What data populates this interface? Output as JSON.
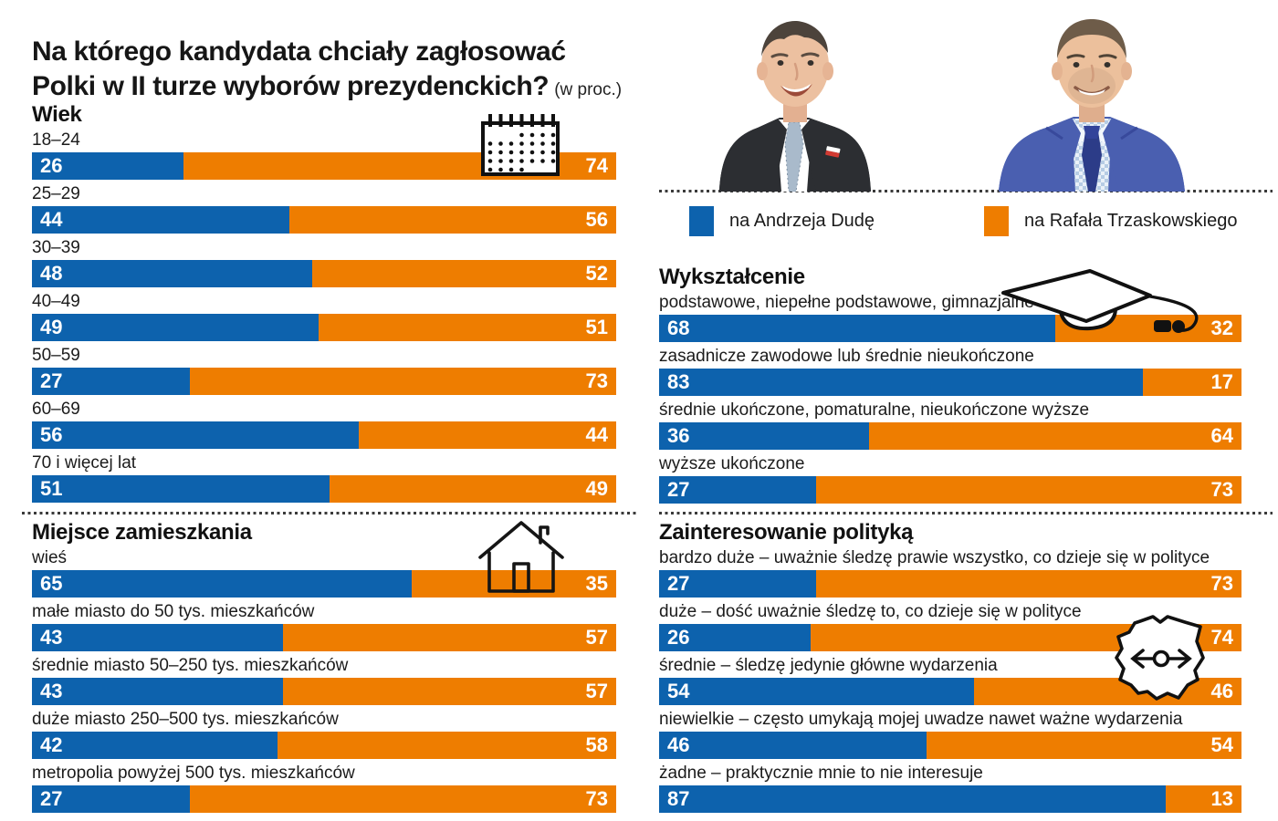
{
  "title": {
    "line1": "Na którego kandydata chciały zagłosować",
    "line2": "Polki w II turze wyborów prezydenckich?",
    "unit_note": "(w proc.)"
  },
  "colors": {
    "duda_blue": "#0d62ad",
    "trzaskowski_orange": "#ee7d00"
  },
  "legend": {
    "duda_label": "na Andrzeja Dudę",
    "trzaskowski_label": "na Rafała Trzaskowskiego"
  },
  "photos": {
    "duda_name": "Andrzej Duda",
    "trzaskowski_name": "Rafał Trzaskowski"
  },
  "chart_data": {
    "type": "bar",
    "subtype": "horizontal-stacked-100percent",
    "unit": "percent",
    "series_names": [
      "na Andrzeja Dudę",
      "na Rafała Trzaskowskiego"
    ],
    "series_colors": [
      "#0d62ad",
      "#ee7d00"
    ],
    "sections": [
      {
        "title": "Wiek",
        "icon": "calendar-icon",
        "rows": [
          {
            "label": "18–24",
            "duda": 26,
            "trzaskowski": 74
          },
          {
            "label": "25–29",
            "duda": 44,
            "trzaskowski": 56
          },
          {
            "label": "30–39",
            "duda": 48,
            "trzaskowski": 52
          },
          {
            "label": "40–49",
            "duda": 49,
            "trzaskowski": 51
          },
          {
            "label": "50–59",
            "duda": 27,
            "trzaskowski": 73
          },
          {
            "label": "60–69",
            "duda": 56,
            "trzaskowski": 44
          },
          {
            "label": "70 i więcej lat",
            "duda": 51,
            "trzaskowski": 49
          }
        ]
      },
      {
        "title": "Miejsce zamieszkania",
        "icon": "house-icon",
        "rows": [
          {
            "label": "wieś",
            "duda": 65,
            "trzaskowski": 35
          },
          {
            "label": "małe miasto do 50 tys. mieszkańców",
            "duda": 43,
            "trzaskowski": 57
          },
          {
            "label": "średnie miasto 50–250 tys. mieszkańców",
            "duda": 43,
            "trzaskowski": 57
          },
          {
            "label": "duże miasto 250–500 tys. mieszkańców",
            "duda": 42,
            "trzaskowski": 58
          },
          {
            "label": "metropolia powyżej 500 tys. mieszkańców",
            "duda": 27,
            "trzaskowski": 73
          }
        ]
      },
      {
        "title": "Wykształcenie",
        "icon": "graduation-cap-icon",
        "rows": [
          {
            "label": "podstawowe, niepełne podstawowe, gimnazjalne",
            "duda": 68,
            "trzaskowski": 32
          },
          {
            "label": "zasadnicze zawodowe lub średnie nieukończone",
            "duda": 83,
            "trzaskowski": 17
          },
          {
            "label": "średnie ukończone, pomaturalne, nieukończone wyższe",
            "duda": 36,
            "trzaskowski": 64
          },
          {
            "label": "wyższe ukończone",
            "duda": 27,
            "trzaskowski": 73
          }
        ]
      },
      {
        "title": "Zainteresowanie polityką",
        "icon": "poland-map-icon",
        "rows": [
          {
            "label": "bardzo duże – uważnie śledzę prawie wszystko, co dzieje się w polityce",
            "duda": 27,
            "trzaskowski": 73
          },
          {
            "label": "duże – dość uważnie śledzę to, co dzieje się w polityce",
            "duda": 26,
            "trzaskowski": 74
          },
          {
            "label": "średnie – śledzę jedynie główne wydarzenia",
            "duda": 54,
            "trzaskowski": 46
          },
          {
            "label": "niewielkie – często umykają mojej uwadze nawet ważne wydarzenia",
            "duda": 46,
            "trzaskowski": 54
          },
          {
            "label": "żadne – praktycznie mnie to nie interesuje",
            "duda": 87,
            "trzaskowski": 13
          }
        ]
      }
    ]
  }
}
